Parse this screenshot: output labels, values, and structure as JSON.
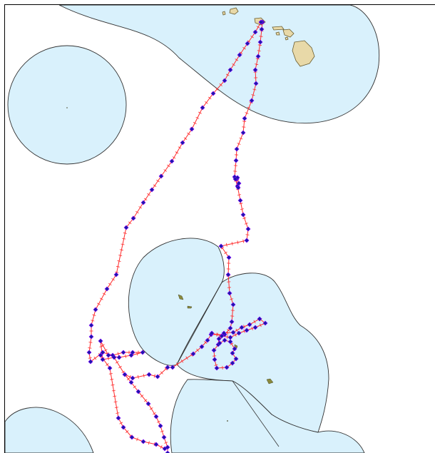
{
  "map": {
    "layers": [
      "eez-zones",
      "islands",
      "vessel-track",
      "track-positions"
    ],
    "colors": {
      "eez_fill": "#d9f1fc",
      "eez_stroke": "#333333",
      "land_fill": "#e8d9a8",
      "land_stroke": "#6b5d2e",
      "atoll_fill": "#8a8a3c",
      "track": "#ff2a2a",
      "position_fill": "#1a1aa8",
      "position_stroke": "#7f00ff"
    },
    "icons": {
      "position_marker": "diamond-marker-icon",
      "track_tick": "tick-mark-icon"
    }
  }
}
